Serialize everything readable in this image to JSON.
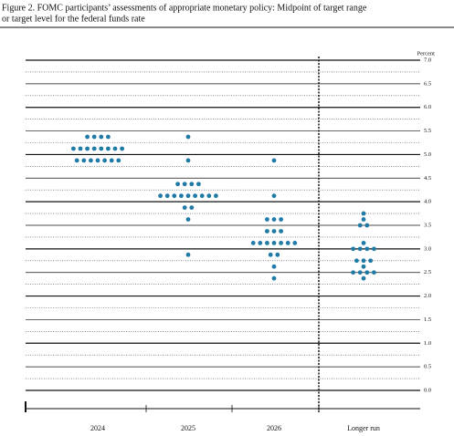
{
  "chart_data": {
    "type": "dot",
    "title_lines": [
      "Figure 2.  FOMC participants’ assessments of appropriate monetary policy: Midpoint of target range",
      "or target level for the federal funds rate"
    ],
    "y_label": "Percent",
    "categories": [
      "2024",
      "2025",
      "2026",
      "Longer run"
    ],
    "color": "#1f7aa5",
    "ylim": [
      0,
      7
    ],
    "yticks": [
      {
        "value": 0,
        "label": "0.0"
      },
      {
        "value": 0.5,
        "label": "0.5"
      },
      {
        "value": 1,
        "label": "1.0"
      },
      {
        "value": 1.5,
        "label": "1.5"
      },
      {
        "value": 2,
        "label": "2.0"
      },
      {
        "value": 2.5,
        "label": "2.5"
      },
      {
        "value": 3,
        "label": "3.0"
      },
      {
        "value": 3.5,
        "label": "3.5"
      },
      {
        "value": 4,
        "label": "4.0"
      },
      {
        "value": 4.5,
        "label": "4.5"
      },
      {
        "value": 5,
        "label": "5.0"
      },
      {
        "value": 5.5,
        "label": "5.5"
      },
      {
        "value": 6,
        "label": "6.0"
      },
      {
        "value": 6.5,
        "label": "6.5"
      },
      {
        "value": 7,
        "label": "7.0"
      }
    ],
    "grid": true,
    "dots": [
      [
        {
          "value": 5.375,
          "count": 4
        },
        {
          "value": 5.125,
          "count": 8
        },
        {
          "value": 4.875,
          "count": 7
        }
      ],
      [
        {
          "value": 5.375,
          "count": 1
        },
        {
          "value": 4.875,
          "count": 1
        },
        {
          "value": 4.375,
          "count": 4
        },
        {
          "value": 4.125,
          "count": 9
        },
        {
          "value": 3.875,
          "count": 2
        },
        {
          "value": 3.625,
          "count": 1
        },
        {
          "value": 2.875,
          "count": 1
        }
      ],
      [
        {
          "value": 4.875,
          "count": 1
        },
        {
          "value": 4.125,
          "count": 1
        },
        {
          "value": 3.625,
          "count": 3
        },
        {
          "value": 3.375,
          "count": 3
        },
        {
          "value": 3.125,
          "count": 7
        },
        {
          "value": 2.875,
          "count": 2
        },
        {
          "value": 2.625,
          "count": 1
        },
        {
          "value": 2.375,
          "count": 1
        }
      ],
      [
        {
          "value": 3.75,
          "count": 1
        },
        {
          "value": 3.625,
          "count": 1
        },
        {
          "value": 3.5,
          "count": 2
        },
        {
          "value": 3.125,
          "count": 1
        },
        {
          "value": 3,
          "count": 4
        },
        {
          "value": 2.75,
          "count": 3
        },
        {
          "value": 2.625,
          "count": 1
        },
        {
          "value": 2.5,
          "count": 4
        },
        {
          "value": 2.375,
          "count": 1
        }
      ]
    ]
  }
}
